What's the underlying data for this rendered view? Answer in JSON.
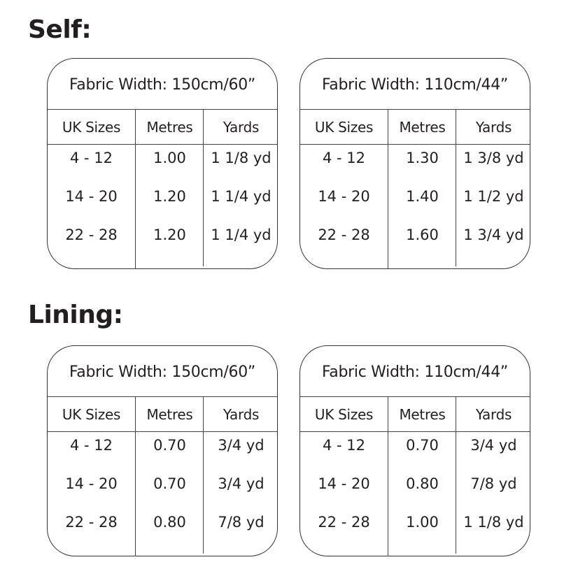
{
  "sections": [
    {
      "title": "Self:",
      "tables": [
        {
          "fabric_width": "Fabric Width: 150cm/60”",
          "columns": [
            "UK Sizes",
            "Metres",
            "Yards"
          ],
          "rows": [
            [
              "4 - 12",
              "1.00",
              "1  1/8 yd"
            ],
            [
              "14 - 20",
              "1.20",
              "1 1/4 yd"
            ],
            [
              "22 - 28",
              "1.20",
              "1 1/4 yd"
            ]
          ]
        },
        {
          "fabric_width": "Fabric Width: 110cm/44”",
          "columns": [
            "UK Sizes",
            "Metres",
            "Yards"
          ],
          "rows": [
            [
              "4 - 12",
              "1.30",
              "1 3/8 yd"
            ],
            [
              "14 - 20",
              "1.40",
              "1 1/2 yd"
            ],
            [
              "22 - 28",
              "1.60",
              "1 3/4 yd"
            ]
          ]
        }
      ]
    },
    {
      "title": "Lining:",
      "tables": [
        {
          "fabric_width": "Fabric Width: 150cm/60”",
          "columns": [
            "UK Sizes",
            "Metres",
            "Yards"
          ],
          "rows": [
            [
              "4 - 12",
              "0.70",
              "3/4 yd"
            ],
            [
              "14 - 20",
              "0.70",
              "3/4 yd"
            ],
            [
              "22 - 28",
              "0.80",
              "7/8 yd"
            ]
          ]
        },
        {
          "fabric_width": "Fabric Width: 110cm/44”",
          "columns": [
            "UK Sizes",
            "Metres",
            "Yards"
          ],
          "rows": [
            [
              "4 - 12",
              "0.70",
              "3/4 yd"
            ],
            [
              "14 - 20",
              "0.80",
              "7/8 yd"
            ],
            [
              "22 - 28",
              "1.00",
              "1 1/8 yd"
            ]
          ]
        }
      ]
    }
  ]
}
